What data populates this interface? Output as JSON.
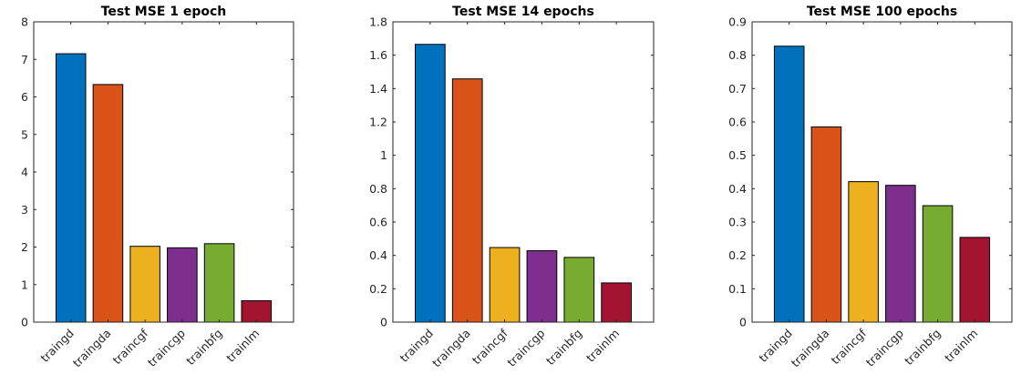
{
  "chart_data": [
    {
      "type": "bar",
      "title": "Test MSE 1 epoch",
      "categories": [
        "traingd",
        "traingda",
        "traincgf",
        "traincgp",
        "trainbfg",
        "trainlm"
      ],
      "values": [
        7.15,
        6.33,
        2.02,
        1.98,
        2.09,
        0.57
      ],
      "ylim": [
        0,
        8
      ],
      "yticks": [
        "0",
        "1",
        "2",
        "3",
        "4",
        "5",
        "6",
        "7",
        "8"
      ],
      "ytick_values": [
        0,
        1,
        2,
        3,
        4,
        5,
        6,
        7,
        8
      ],
      "grid": false,
      "colors": [
        "#0072bd",
        "#d95319",
        "#edb120",
        "#7e2f8e",
        "#77ac30",
        "#a2142f"
      ]
    },
    {
      "type": "bar",
      "title": "Test MSE 14 epochs",
      "categories": [
        "traingd",
        "traingda",
        "traincgf",
        "traincgp",
        "trainbfg",
        "trainlm"
      ],
      "values": [
        1.665,
        1.458,
        0.447,
        0.428,
        0.388,
        0.235
      ],
      "ylim": [
        0,
        1.8
      ],
      "yticks": [
        "0",
        "0.2",
        "0.4",
        "0.6",
        "0.8",
        "1",
        "1.2",
        "1.4",
        "1.6",
        "1.8"
      ],
      "ytick_values": [
        0,
        0.2,
        0.4,
        0.6,
        0.8,
        1.0,
        1.2,
        1.4,
        1.6,
        1.8
      ],
      "grid": false,
      "colors": [
        "#0072bd",
        "#d95319",
        "#edb120",
        "#7e2f8e",
        "#77ac30",
        "#a2142f"
      ]
    },
    {
      "type": "bar",
      "title": "Test MSE 100 epochs",
      "categories": [
        "traingd",
        "traingda",
        "traincgf",
        "traincgp",
        "trainbfg",
        "trainlm"
      ],
      "values": [
        0.827,
        0.585,
        0.421,
        0.41,
        0.349,
        0.254
      ],
      "ylim": [
        0,
        0.9
      ],
      "yticks": [
        "0",
        "0.1",
        "0.2",
        "0.3",
        "0.4",
        "0.5",
        "0.6",
        "0.7",
        "0.8",
        "0.9"
      ],
      "ytick_values": [
        0,
        0.1,
        0.2,
        0.3,
        0.4,
        0.5,
        0.6,
        0.7,
        0.8,
        0.9
      ],
      "grid": false,
      "colors": [
        "#0072bd",
        "#d95319",
        "#edb120",
        "#7e2f8e",
        "#77ac30",
        "#a2142f"
      ]
    }
  ]
}
